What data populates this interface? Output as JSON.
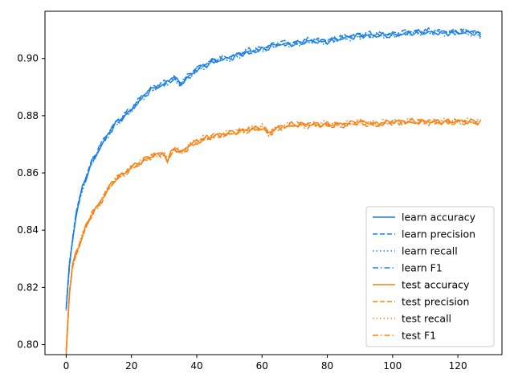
{
  "chart_data": {
    "type": "line",
    "title": "",
    "xlabel": "",
    "ylabel": "",
    "xlim": [
      -6.5,
      133.5
    ],
    "ylim": [
      0.7965,
      0.9165
    ],
    "xticks": [
      0,
      20,
      40,
      60,
      80,
      100,
      120
    ],
    "xtick_labels": [
      "0",
      "20",
      "40",
      "60",
      "80",
      "100",
      "120"
    ],
    "yticks": [
      0.8,
      0.82,
      0.84,
      0.86,
      0.88,
      0.9
    ],
    "ytick_labels": [
      "0.80",
      "0.82",
      "0.84",
      "0.86",
      "0.88",
      "0.90"
    ],
    "grid": false,
    "legend_position": "lower-right",
    "x_range": [
      0,
      127
    ],
    "learn_curve": {
      "x": [
        0,
        1,
        2,
        3,
        4,
        5,
        6,
        7,
        8,
        10,
        12,
        15,
        20,
        23,
        26,
        30,
        33,
        35,
        38,
        40,
        45,
        50,
        55,
        60,
        65,
        70,
        75,
        80,
        85,
        90,
        95,
        100,
        105,
        110,
        115,
        120,
        125,
        127
      ],
      "values": [
        0.812,
        0.828,
        0.837,
        0.845,
        0.85,
        0.855,
        0.858,
        0.861,
        0.864,
        0.868,
        0.872,
        0.877,
        0.882,
        0.886,
        0.889,
        0.891,
        0.893,
        0.891,
        0.894,
        0.896,
        0.899,
        0.9,
        0.902,
        0.903,
        0.905,
        0.905,
        0.906,
        0.906,
        0.907,
        0.908,
        0.908,
        0.908,
        0.909,
        0.909,
        0.909,
        0.909,
        0.909,
        0.908
      ]
    },
    "test_curve": {
      "x": [
        0,
        1,
        2,
        3,
        4,
        5,
        6,
        7,
        8,
        10,
        12,
        15,
        18,
        20,
        23,
        26,
        30,
        31,
        33,
        35,
        38,
        40,
        45,
        50,
        55,
        60,
        62,
        65,
        70,
        75,
        80,
        85,
        90,
        95,
        100,
        105,
        110,
        115,
        120,
        125,
        127
      ],
      "values": [
        0.798,
        0.818,
        0.828,
        0.832,
        0.835,
        0.838,
        0.841,
        0.844,
        0.846,
        0.849,
        0.853,
        0.858,
        0.86,
        0.862,
        0.864,
        0.866,
        0.867,
        0.864,
        0.869,
        0.867,
        0.87,
        0.871,
        0.873,
        0.874,
        0.875,
        0.876,
        0.874,
        0.876,
        0.877,
        0.877,
        0.877,
        0.877,
        0.878,
        0.877,
        0.878,
        0.878,
        0.878,
        0.878,
        0.878,
        0.878,
        0.878
      ]
    },
    "series": [
      {
        "name": "learn accuracy",
        "group": "learn",
        "color": "#1a80e8",
        "style": "solid",
        "offset": 0.0
      },
      {
        "name": "learn precision",
        "group": "learn",
        "color": "#1a80e8",
        "style": "dashed",
        "offset": 0.0006
      },
      {
        "name": "learn recall",
        "group": "learn",
        "color": "#1a80e8",
        "style": "dotted",
        "offset": -0.0003
      },
      {
        "name": "learn F1",
        "group": "learn",
        "color": "#1a80e8",
        "style": "dashdot",
        "offset": 0.0002
      },
      {
        "name": "test accuracy",
        "group": "test",
        "color": "#f98112",
        "style": "solid",
        "offset": 0.0
      },
      {
        "name": "test precision",
        "group": "test",
        "color": "#f98112",
        "style": "dashed",
        "offset": -0.0005
      },
      {
        "name": "test recall",
        "group": "test",
        "color": "#f98112",
        "style": "dotted",
        "offset": 0.0003
      },
      {
        "name": "test F1",
        "group": "test",
        "color": "#f98112",
        "style": "dashdot",
        "offset": -0.0002
      }
    ]
  }
}
